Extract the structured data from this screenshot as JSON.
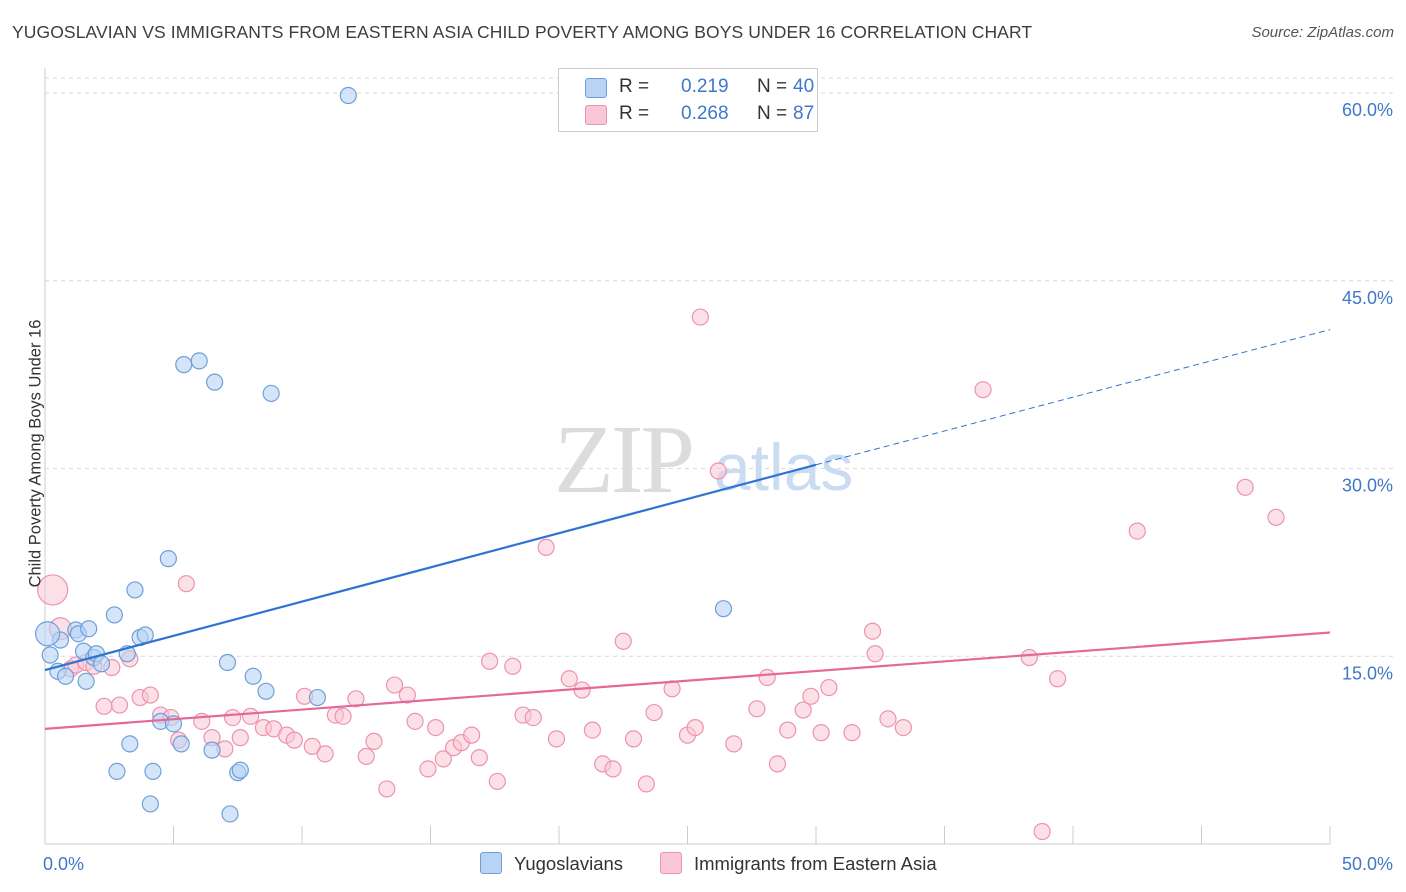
{
  "header": {
    "title": "YUGOSLAVIAN VS IMMIGRANTS FROM EASTERN ASIA CHILD POVERTY AMONG BOYS UNDER 16 CORRELATION CHART",
    "source": "Source: ZipAtlas.com"
  },
  "watermark": {
    "zip": "ZIP",
    "atlas": "atlas"
  },
  "legend": {
    "r_label": "R =",
    "n_label": "N =",
    "items": [
      {
        "r": "0.219",
        "n": "40"
      },
      {
        "r": "0.268",
        "n": "87"
      }
    ]
  },
  "colors": {
    "yugoslavians_fill": "#b9d3f5",
    "yugoslavians_stroke": "#6f9fd8",
    "yugoslavians_line": "#2f74d0",
    "eastern_asia_fill": "#f9c7d5",
    "eastern_asia_stroke": "#ec93ad",
    "eastern_asia_line": "#e5689a",
    "tick_label": "#3f78c8"
  },
  "chart_data": {
    "type": "scatter",
    "title": "YUGOSLAVIAN VS IMMIGRANTS FROM EASTERN ASIA CHILD POVERTY AMONG BOYS UNDER 16 CORRELATION CHART",
    "xlabel": "",
    "ylabel": "Child Poverty Among Boys Under 16",
    "xlim": [
      0,
      50
    ],
    "ylim": [
      0,
      62
    ],
    "x_tick_labels": [
      "0.0%",
      "50.0%"
    ],
    "y_ticks": [
      15,
      30,
      45,
      60
    ],
    "y_tick_labels": [
      "15.0%",
      "30.0%",
      "45.0%",
      "60.0%"
    ],
    "grid": true,
    "legend_position": "top-center",
    "series": [
      {
        "name": "Yugoslavians",
        "r": 0.219,
        "n": 40,
        "trend": {
          "x": [
            0,
            30
          ],
          "y": [
            13.9,
            30.3
          ],
          "dashed_to_x": 50,
          "dashed_to_y": 41.1
        },
        "points": [
          [
            0.2,
            15.1
          ],
          [
            0.5,
            13.8
          ],
          [
            0.6,
            16.3
          ],
          [
            0.8,
            13.4
          ],
          [
            1.2,
            17.1
          ],
          [
            1.3,
            16.8
          ],
          [
            1.5,
            15.4
          ],
          [
            1.6,
            13.0
          ],
          [
            1.7,
            17.2
          ],
          [
            1.9,
            14.9
          ],
          [
            2.0,
            15.2
          ],
          [
            2.2,
            14.4
          ],
          [
            2.7,
            18.3
          ],
          [
            3.2,
            15.2
          ],
          [
            3.5,
            20.3
          ],
          [
            3.7,
            16.5
          ],
          [
            3.9,
            16.7
          ],
          [
            2.8,
            5.8
          ],
          [
            3.3,
            8.0
          ],
          [
            4.1,
            3.2
          ],
          [
            4.2,
            5.8
          ],
          [
            4.5,
            9.8
          ],
          [
            4.8,
            22.8
          ],
          [
            5.0,
            9.6
          ],
          [
            5.3,
            8.0
          ],
          [
            5.4,
            38.3
          ],
          [
            6.0,
            38.6
          ],
          [
            6.5,
            7.5
          ],
          [
            6.6,
            36.9
          ],
          [
            7.1,
            14.5
          ],
          [
            7.2,
            2.4
          ],
          [
            7.5,
            5.7
          ],
          [
            7.6,
            5.9
          ],
          [
            8.1,
            13.4
          ],
          [
            8.6,
            12.2
          ],
          [
            8.8,
            36.0
          ],
          [
            10.6,
            11.7
          ],
          [
            11.8,
            59.8
          ],
          [
            26.4,
            18.8
          ],
          [
            0.1,
            16.8
          ]
        ]
      },
      {
        "name": "Immigrants from Eastern Asia",
        "r": 0.268,
        "n": 87,
        "trend": {
          "x": [
            0,
            50
          ],
          "y": [
            9.2,
            16.9
          ]
        },
        "points": [
          [
            0.3,
            20.3
          ],
          [
            0.6,
            17.2
          ],
          [
            1.0,
            14.0
          ],
          [
            1.2,
            14.3
          ],
          [
            1.6,
            14.5
          ],
          [
            1.9,
            14.2
          ],
          [
            2.3,
            11.0
          ],
          [
            2.6,
            14.1
          ],
          [
            2.9,
            11.1
          ],
          [
            3.3,
            14.8
          ],
          [
            3.7,
            11.7
          ],
          [
            4.1,
            11.9
          ],
          [
            4.5,
            10.3
          ],
          [
            4.9,
            10.1
          ],
          [
            5.2,
            8.3
          ],
          [
            5.5,
            20.8
          ],
          [
            6.1,
            9.8
          ],
          [
            6.5,
            8.5
          ],
          [
            7.0,
            7.6
          ],
          [
            7.3,
            10.1
          ],
          [
            7.6,
            8.5
          ],
          [
            8.0,
            10.2
          ],
          [
            8.5,
            9.3
          ],
          [
            8.9,
            9.2
          ],
          [
            9.4,
            8.7
          ],
          [
            9.7,
            8.3
          ],
          [
            10.1,
            11.8
          ],
          [
            10.4,
            7.8
          ],
          [
            10.9,
            7.2
          ],
          [
            11.3,
            10.3
          ],
          [
            11.6,
            10.2
          ],
          [
            12.1,
            11.6
          ],
          [
            12.5,
            7.0
          ],
          [
            12.8,
            8.2
          ],
          [
            13.3,
            4.4
          ],
          [
            13.6,
            12.7
          ],
          [
            14.1,
            11.9
          ],
          [
            14.4,
            9.8
          ],
          [
            14.9,
            6.0
          ],
          [
            15.2,
            9.3
          ],
          [
            15.5,
            6.8
          ],
          [
            15.9,
            7.7
          ],
          [
            16.2,
            8.1
          ],
          [
            16.6,
            8.7
          ],
          [
            16.9,
            6.9
          ],
          [
            17.3,
            14.6
          ],
          [
            17.6,
            5.0
          ],
          [
            18.2,
            14.2
          ],
          [
            18.6,
            10.3
          ],
          [
            19.0,
            10.1
          ],
          [
            19.5,
            23.7
          ],
          [
            19.9,
            8.4
          ],
          [
            20.4,
            13.2
          ],
          [
            20.9,
            12.3
          ],
          [
            21.3,
            9.1
          ],
          [
            21.7,
            6.4
          ],
          [
            22.1,
            6.0
          ],
          [
            22.5,
            16.2
          ],
          [
            22.9,
            8.4
          ],
          [
            23.4,
            4.8
          ],
          [
            23.7,
            10.5
          ],
          [
            24.4,
            12.4
          ],
          [
            25.0,
            8.7
          ],
          [
            25.3,
            9.3
          ],
          [
            25.5,
            42.1
          ],
          [
            26.2,
            29.8
          ],
          [
            26.8,
            8.0
          ],
          [
            27.7,
            10.8
          ],
          [
            28.1,
            13.3
          ],
          [
            28.5,
            6.4
          ],
          [
            28.9,
            9.1
          ],
          [
            29.5,
            10.7
          ],
          [
            29.8,
            11.8
          ],
          [
            30.2,
            8.9
          ],
          [
            30.5,
            12.5
          ],
          [
            31.4,
            8.9
          ],
          [
            32.2,
            17.0
          ],
          [
            32.3,
            15.2
          ],
          [
            32.8,
            10.0
          ],
          [
            33.4,
            9.3
          ],
          [
            36.5,
            36.3
          ],
          [
            38.3,
            14.9
          ],
          [
            38.8,
            1.0
          ],
          [
            39.4,
            13.2
          ],
          [
            42.5,
            25.0
          ],
          [
            46.7,
            28.5
          ],
          [
            47.9,
            26.1
          ]
        ]
      }
    ]
  },
  "bottom_legend": {
    "items": [
      {
        "label": "Yugoslavians"
      },
      {
        "label": "Immigrants from Eastern Asia"
      }
    ]
  }
}
